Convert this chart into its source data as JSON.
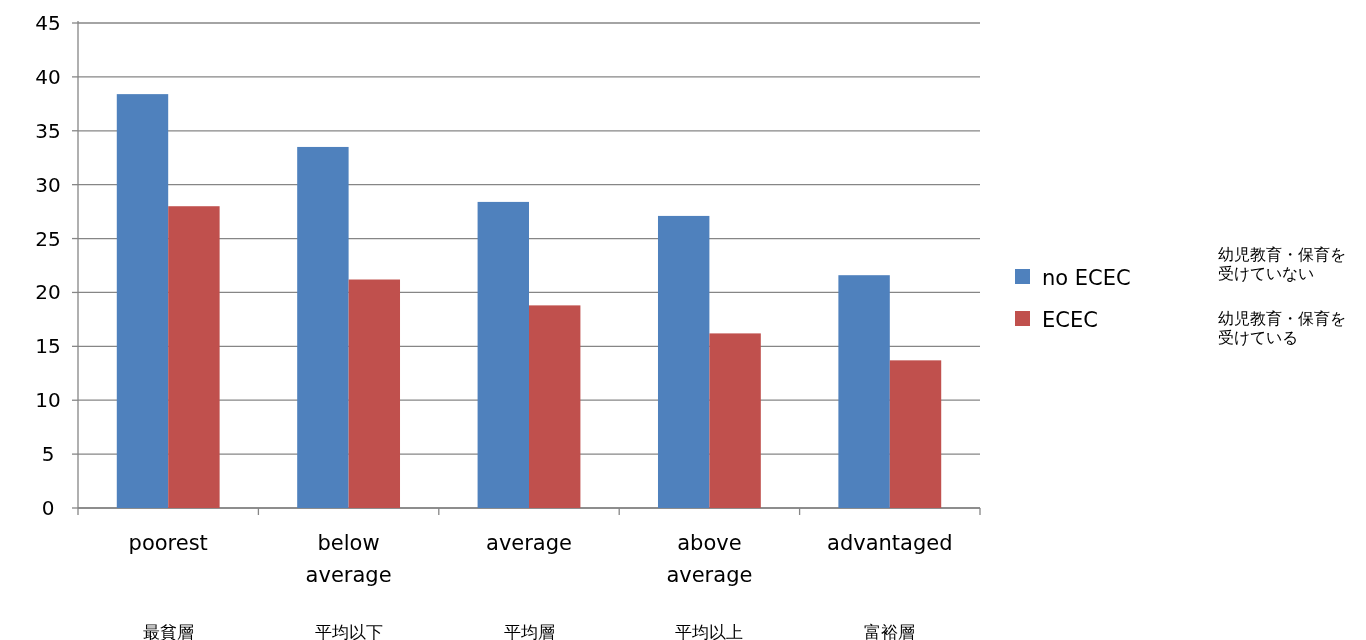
{
  "chart_data": {
    "type": "bar",
    "categories": [
      "poorest",
      "below average",
      "average",
      "above average",
      "advantaged"
    ],
    "series": [
      {
        "name": "no ECEC",
        "color": "#4f81bd",
        "values": [
          38.4,
          33.5,
          28.4,
          27.1,
          21.6
        ]
      },
      {
        "name": "ECEC",
        "color": "#c0504d",
        "values": [
          28.0,
          21.2,
          18.8,
          16.2,
          13.7
        ]
      }
    ],
    "ylim": [
      0,
      45
    ],
    "yticks": [
      0,
      5,
      10,
      15,
      20,
      25,
      30,
      35,
      40,
      45
    ],
    "grid": "y",
    "legend": "right",
    "annotations": [
      "最貧層",
      "平均以下",
      "平均層",
      "平均以上",
      "富裕層",
      "幼児教育・保育を受けていない",
      "幼児教育・保育を受けている"
    ]
  }
}
